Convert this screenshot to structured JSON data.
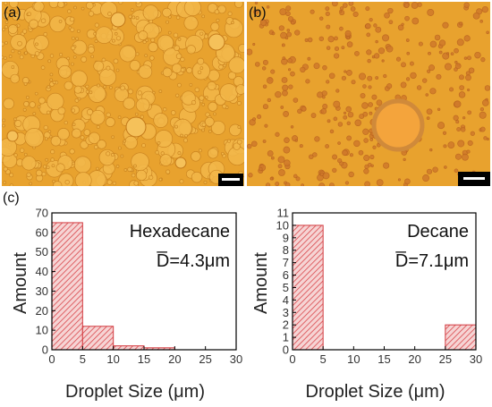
{
  "panels": {
    "a": "(a)",
    "b": "(b)",
    "c": "(c)"
  },
  "colors": {
    "micrograph_base": "#e8a22e",
    "bar_fill": "#f6d4d4",
    "bar_hatch": "#d9464a",
    "bar_edge": "#d23a3f"
  },
  "chart_data": [
    {
      "type": "bar",
      "bins": [
        [
          0,
          5
        ],
        [
          5,
          10
        ],
        [
          10,
          15
        ],
        [
          15,
          20
        ],
        [
          20,
          25
        ],
        [
          25,
          30
        ]
      ],
      "values": [
        65,
        12,
        2,
        1,
        0,
        0
      ],
      "xlabel": "Droplet Size (μm)",
      "ylabel": "Amount",
      "xlim": [
        0,
        30
      ],
      "ylim": [
        0,
        70
      ],
      "xticks": [
        0,
        5,
        10,
        15,
        20,
        25,
        30
      ],
      "yticks": [
        0,
        10,
        20,
        30,
        40,
        50,
        60,
        70
      ],
      "annotation_name": "Hexadecane",
      "annotation_mean": "D̅=4.3μm",
      "grid": false,
      "pattern": "hatched"
    },
    {
      "type": "bar",
      "bins": [
        [
          0,
          5
        ],
        [
          5,
          10
        ],
        [
          10,
          15
        ],
        [
          15,
          20
        ],
        [
          20,
          25
        ],
        [
          25,
          30
        ]
      ],
      "values": [
        10,
        0,
        0,
        0,
        0,
        2
      ],
      "xlabel": "Droplet Size (μm)",
      "ylabel": "Amount",
      "xlim": [
        0,
        30
      ],
      "ylim": [
        0,
        11
      ],
      "xticks": [
        0,
        5,
        10,
        15,
        20,
        25,
        30
      ],
      "yticks": [
        0,
        1,
        2,
        3,
        4,
        5,
        6,
        7,
        8,
        9,
        10,
        11
      ],
      "annotation_name": "Decane",
      "annotation_mean": "D̅=7.1μm",
      "grid": false,
      "pattern": "hatched"
    }
  ]
}
